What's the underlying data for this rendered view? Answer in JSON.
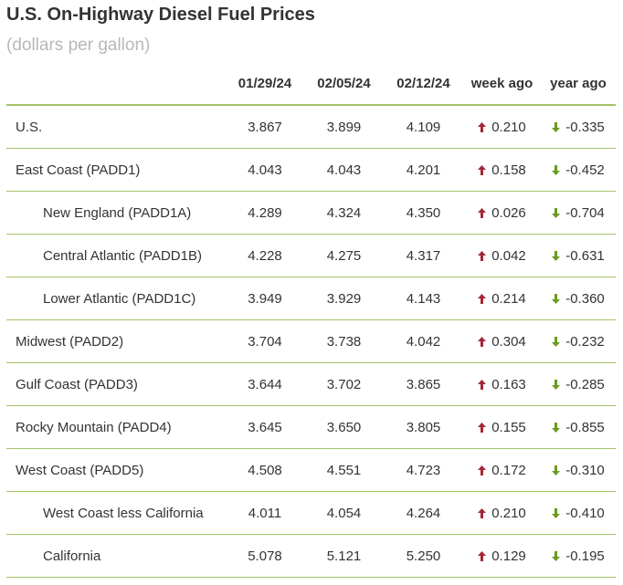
{
  "title": "U.S. On-Highway Diesel Fuel Prices",
  "subtitle": "(dollars per gallon)",
  "colors": {
    "up_arrow": "#a32638",
    "down_arrow": "#6a9a1f",
    "divider": "#a4c467",
    "subtitle": "#b8b8b8"
  },
  "headers": [
    "",
    "01/29/24",
    "02/05/24",
    "02/12/24",
    "week ago",
    "year ago"
  ],
  "rows": [
    {
      "region": "U.S.",
      "indent": false,
      "d1": "3.867",
      "d2": "3.899",
      "d3": "4.109",
      "week_dir": "up",
      "week": "0.210",
      "year_dir": "down",
      "year": "-0.335"
    },
    {
      "region": "East Coast (PADD1)",
      "indent": false,
      "d1": "4.043",
      "d2": "4.043",
      "d3": "4.201",
      "week_dir": "up",
      "week": "0.158",
      "year_dir": "down",
      "year": "-0.452"
    },
    {
      "region": "New England (PADD1A)",
      "indent": true,
      "d1": "4.289",
      "d2": "4.324",
      "d3": "4.350",
      "week_dir": "up",
      "week": "0.026",
      "year_dir": "down",
      "year": "-0.704"
    },
    {
      "region": "Central Atlantic (PADD1B)",
      "indent": true,
      "d1": "4.228",
      "d2": "4.275",
      "d3": "4.317",
      "week_dir": "up",
      "week": "0.042",
      "year_dir": "down",
      "year": "-0.631"
    },
    {
      "region": "Lower Atlantic (PADD1C)",
      "indent": true,
      "d1": "3.949",
      "d2": "3.929",
      "d3": "4.143",
      "week_dir": "up",
      "week": "0.214",
      "year_dir": "down",
      "year": "-0.360"
    },
    {
      "region": "Midwest (PADD2)",
      "indent": false,
      "d1": "3.704",
      "d2": "3.738",
      "d3": "4.042",
      "week_dir": "up",
      "week": "0.304",
      "year_dir": "down",
      "year": "-0.232"
    },
    {
      "region": "Gulf Coast (PADD3)",
      "indent": false,
      "d1": "3.644",
      "d2": "3.702",
      "d3": "3.865",
      "week_dir": "up",
      "week": "0.163",
      "year_dir": "down",
      "year": "-0.285"
    },
    {
      "region": "Rocky Mountain (PADD4)",
      "indent": false,
      "d1": "3.645",
      "d2": "3.650",
      "d3": "3.805",
      "week_dir": "up",
      "week": "0.155",
      "year_dir": "down",
      "year": "-0.855"
    },
    {
      "region": "West Coast (PADD5)",
      "indent": false,
      "d1": "4.508",
      "d2": "4.551",
      "d3": "4.723",
      "week_dir": "up",
      "week": "0.172",
      "year_dir": "down",
      "year": "-0.310"
    },
    {
      "region": "West Coast less California",
      "indent": true,
      "d1": "4.011",
      "d2": "4.054",
      "d3": "4.264",
      "week_dir": "up",
      "week": "0.210",
      "year_dir": "down",
      "year": "-0.410"
    },
    {
      "region": "California",
      "indent": true,
      "d1": "5.078",
      "d2": "5.121",
      "d3": "5.250",
      "week_dir": "up",
      "week": "0.129",
      "year_dir": "down",
      "year": "-0.195"
    }
  ]
}
